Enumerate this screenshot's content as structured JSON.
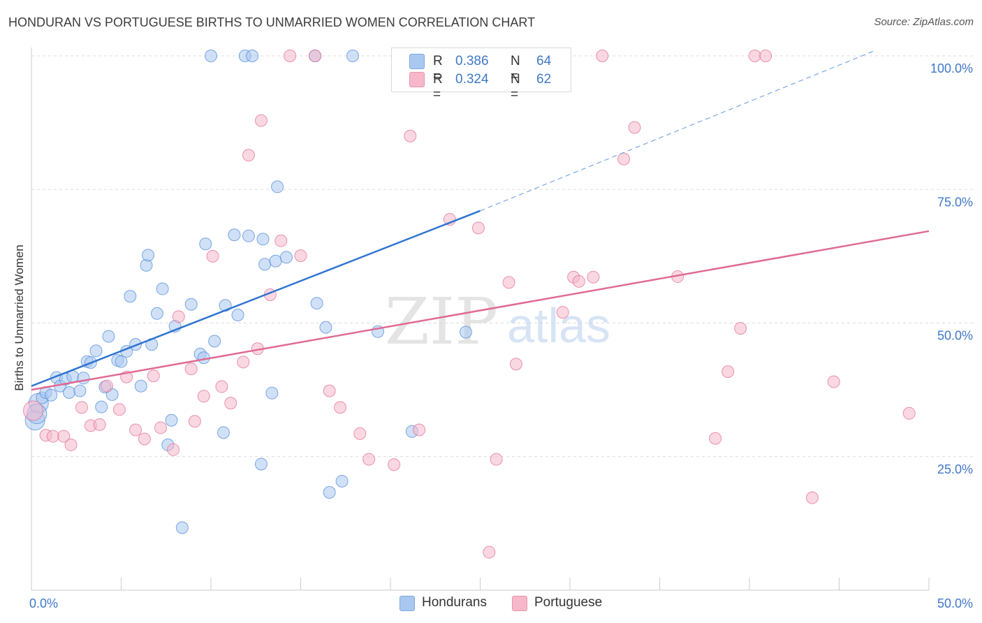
{
  "title": "HONDURAN VS PORTUGUESE BIRTHS TO UNMARRIED WOMEN CORRELATION CHART",
  "source": "Source: ZipAtlas.com",
  "watermark": {
    "zip": "ZIP",
    "atlas": "atlas"
  },
  "legend_stats": [
    {
      "r_label": "R = ",
      "r_value": "0.386",
      "n_label": "N = ",
      "n_value": "64",
      "color": "#a9c8f0"
    },
    {
      "r_label": "R = ",
      "r_value": "0.324",
      "n_label": "N = ",
      "n_value": "62",
      "color": "#f6b8ca"
    }
  ],
  "chart_data": {
    "type": "scatter",
    "title": "HONDURAN VS PORTUGUESE BIRTHS TO UNMARRIED WOMEN CORRELATION CHART",
    "ylabel": "Births to Unmarried Women",
    "xlabel": "",
    "xlim": [
      0,
      50
    ],
    "ylim": [
      0,
      102
    ],
    "x_tick_labels": [
      "0.0%",
      "50.0%"
    ],
    "y_tick_labels": [
      "25.0%",
      "50.0%",
      "75.0%",
      "100.0%"
    ],
    "y_ticks": [
      25,
      50,
      75,
      100
    ],
    "grid": true,
    "legend_position": "bottom-center",
    "series": [
      {
        "name": "Hondurans",
        "color": "#4a86d8",
        "fill": "#a9c8f0",
        "trend": {
          "x0": 0,
          "y0": 38.2,
          "x1": 25,
          "y1": 71.0,
          "dashed_to_x": 47.0,
          "dashed_to_y": 101.0
        },
        "points": [
          [
            0.2,
            31.8
          ],
          [
            0.4,
            35.0
          ],
          [
            0.6,
            36.0
          ],
          [
            0.8,
            37.0
          ],
          [
            1.1,
            36.5
          ],
          [
            1.4,
            39.8
          ],
          [
            1.6,
            38.2
          ],
          [
            1.9,
            39.5
          ],
          [
            2.1,
            37.0
          ],
          [
            2.3,
            40.0
          ],
          [
            2.7,
            37.3
          ],
          [
            2.9,
            39.7
          ],
          [
            3.1,
            42.8
          ],
          [
            3.3,
            42.6
          ],
          [
            3.6,
            44.8
          ],
          [
            3.9,
            34.3
          ],
          [
            4.1,
            38.0
          ],
          [
            4.3,
            47.5
          ],
          [
            4.5,
            36.6
          ],
          [
            4.8,
            43.0
          ],
          [
            5.0,
            42.8
          ],
          [
            5.3,
            44.7
          ],
          [
            5.5,
            55.0
          ],
          [
            5.8,
            46.0
          ],
          [
            6.1,
            38.2
          ],
          [
            6.4,
            60.8
          ],
          [
            6.5,
            62.7
          ],
          [
            6.7,
            46.0
          ],
          [
            7.0,
            51.8
          ],
          [
            7.3,
            56.4
          ],
          [
            7.6,
            27.2
          ],
          [
            7.8,
            31.8
          ],
          [
            8.0,
            49.4
          ],
          [
            8.4,
            11.7
          ],
          [
            8.9,
            53.5
          ],
          [
            9.4,
            44.2
          ],
          [
            9.6,
            43.5
          ],
          [
            9.7,
            64.8
          ],
          [
            10.2,
            46.6
          ],
          [
            10.7,
            29.5
          ],
          [
            10.8,
            53.3
          ],
          [
            11.3,
            66.5
          ],
          [
            11.5,
            51.5
          ],
          [
            12.1,
            66.3
          ],
          [
            12.8,
            23.6
          ],
          [
            12.9,
            65.7
          ],
          [
            13.0,
            61.0
          ],
          [
            13.4,
            36.9
          ],
          [
            13.6,
            61.6
          ],
          [
            13.7,
            75.5
          ],
          [
            14.2,
            62.3
          ],
          [
            15.9,
            53.7
          ],
          [
            16.4,
            49.2
          ],
          [
            16.6,
            18.3
          ],
          [
            17.3,
            20.4
          ],
          [
            19.3,
            48.4
          ],
          [
            21.2,
            29.7
          ],
          [
            24.2,
            48.3
          ],
          [
            10.0,
            100.0
          ],
          [
            11.9,
            100.0
          ],
          [
            12.3,
            100.0
          ],
          [
            15.8,
            100.0
          ],
          [
            17.9,
            100.0
          ],
          [
            0.3,
            33.0
          ]
        ]
      },
      {
        "name": "Portuguese",
        "color": "#e06a93",
        "fill": "#f6b8ca",
        "trend": {
          "x0": 0,
          "y0": 37.5,
          "x1": 50,
          "y1": 67.2
        },
        "points": [
          [
            0.1,
            33.6
          ],
          [
            0.8,
            29.0
          ],
          [
            1.2,
            28.8
          ],
          [
            1.8,
            28.8
          ],
          [
            2.2,
            27.2
          ],
          [
            2.8,
            34.2
          ],
          [
            3.3,
            30.8
          ],
          [
            3.8,
            31.0
          ],
          [
            4.2,
            38.2
          ],
          [
            4.9,
            33.8
          ],
          [
            5.3,
            39.9
          ],
          [
            5.8,
            30.0
          ],
          [
            6.3,
            28.3
          ],
          [
            6.8,
            40.1
          ],
          [
            7.2,
            30.4
          ],
          [
            7.9,
            26.3
          ],
          [
            8.2,
            51.2
          ],
          [
            8.9,
            41.4
          ],
          [
            9.1,
            31.6
          ],
          [
            9.6,
            36.3
          ],
          [
            10.1,
            62.5
          ],
          [
            10.6,
            38.1
          ],
          [
            11.1,
            35.0
          ],
          [
            11.8,
            42.7
          ],
          [
            12.1,
            81.4
          ],
          [
            12.6,
            45.2
          ],
          [
            12.8,
            87.9
          ],
          [
            13.3,
            55.3
          ],
          [
            13.9,
            65.4
          ],
          [
            14.4,
            100.0
          ],
          [
            15.0,
            62.6
          ],
          [
            15.8,
            100.0
          ],
          [
            16.6,
            37.3
          ],
          [
            17.2,
            34.2
          ],
          [
            18.3,
            29.3
          ],
          [
            18.8,
            24.5
          ],
          [
            20.2,
            23.5
          ],
          [
            21.1,
            85.0
          ],
          [
            21.6,
            30.0
          ],
          [
            23.3,
            69.4
          ],
          [
            24.9,
            67.8
          ],
          [
            25.5,
            7.1
          ],
          [
            25.9,
            24.5
          ],
          [
            26.6,
            57.6
          ],
          [
            27.0,
            42.3
          ],
          [
            29.2,
            100.0
          ],
          [
            29.6,
            52.0
          ],
          [
            30.2,
            58.6
          ],
          [
            30.5,
            57.8
          ],
          [
            31.3,
            58.6
          ],
          [
            31.8,
            100.0
          ],
          [
            33.0,
            80.7
          ],
          [
            33.6,
            86.6
          ],
          [
            36.0,
            58.7
          ],
          [
            38.1,
            28.4
          ],
          [
            38.8,
            40.9
          ],
          [
            39.5,
            49.0
          ],
          [
            40.3,
            100.0
          ],
          [
            40.9,
            100.0
          ],
          [
            43.5,
            17.3
          ],
          [
            44.7,
            39.0
          ],
          [
            48.9,
            33.1
          ]
        ]
      }
    ]
  }
}
